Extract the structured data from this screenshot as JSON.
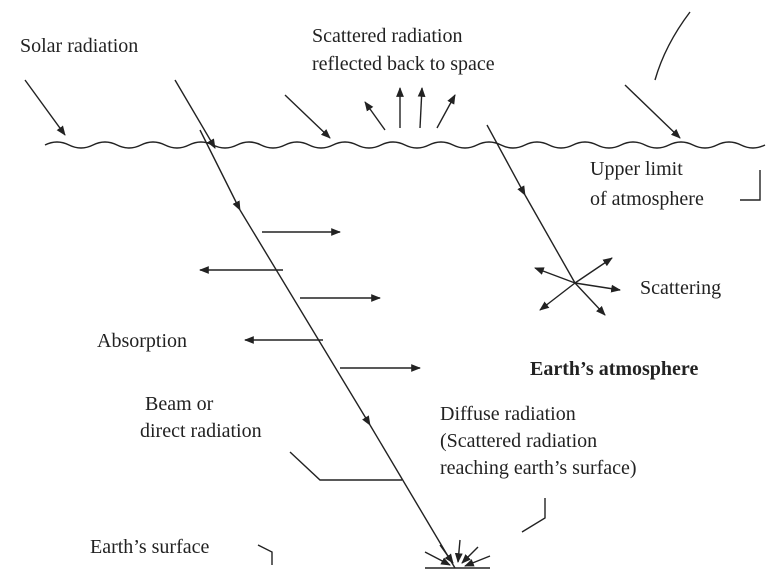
{
  "labels": {
    "solar_radiation": "Solar radiation",
    "scattered_reflected": [
      "Scattered radiation",
      "reflected back to space"
    ],
    "upper_limit": [
      "Upper limit",
      "of atmosphere"
    ],
    "scattering": "Scattering",
    "absorption": "Absorption",
    "earths_atmosphere": "Earth’s atmosphere",
    "beam": [
      "Beam or",
      "direct radiation"
    ],
    "diffuse": [
      "Diffuse radiation",
      "(Scattered radiation",
      "reaching earth’s surface)"
    ],
    "earths_surface": "Earth’s surface"
  }
}
